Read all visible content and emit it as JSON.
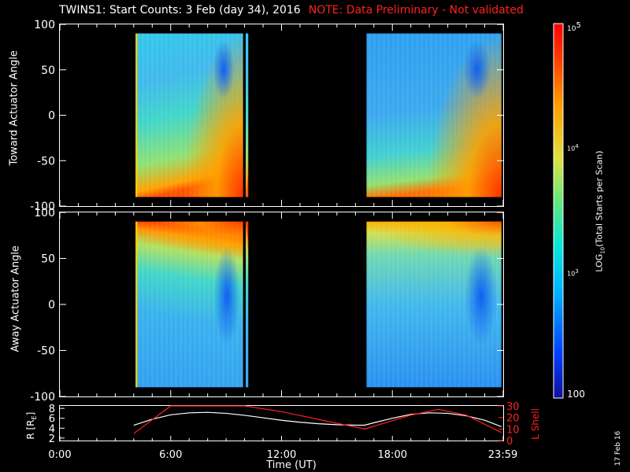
{
  "title": "TWINS1: Start Counts:  3 Feb (day  34), 2016",
  "note": "NOTE: Data Preliminary - Not validated",
  "colors": {
    "note": "#ff2020",
    "lshell": "#ff2020",
    "r_trace": "#ffffff",
    "background": "#000000",
    "nodata": "#000000"
  },
  "colorbar": {
    "label": "LOG10(Total Starts per Scan)",
    "ticks": [
      "10^5",
      "10^4",
      "10^3",
      "100"
    ],
    "range": [
      100,
      100000
    ],
    "scale": "log"
  },
  "date_stamp": "17 Feb 16",
  "chart_data": [
    {
      "type": "heatmap",
      "panel": "toward",
      "ylabel": "Toward Actuator Angle",
      "ylim": [
        -100,
        100
      ],
      "y_ticks": [
        "100",
        "50",
        "0",
        "-50",
        "-100"
      ],
      "data_y_range": [
        -90,
        90
      ],
      "data_intervals_hours": [
        [
          4.1,
          9.92
        ],
        [
          10.06,
          10.2
        ],
        [
          16.6,
          23.9
        ]
      ],
      "bright_edge_hours": [
        4.1,
        9.92
      ]
    },
    {
      "type": "heatmap",
      "panel": "away",
      "ylabel": "Away Actuator Angle",
      "ylim": [
        -100,
        100
      ],
      "y_ticks": [
        "100",
        "50",
        "0",
        "-50",
        "-100"
      ],
      "data_y_range": [
        -90,
        90
      ],
      "data_intervals_hours": [
        [
          4.1,
          9.92
        ],
        [
          10.06,
          10.2
        ],
        [
          16.6,
          23.9
        ]
      ],
      "bright_edge_hours": [
        4.1,
        9.92
      ]
    },
    {
      "type": "line",
      "panel": "orbit",
      "ylabel": "R [RE]",
      "y2label": "L Shell",
      "ylim": [
        1.5,
        8.5
      ],
      "y_ticks": [
        "8",
        "6",
        "4",
        "2"
      ],
      "y2lim": [
        0,
        30
      ],
      "y2_ticks": [
        "30",
        "20",
        "10",
        "0"
      ],
      "x_ticks": [
        "0:00",
        "6:00",
        "12:00",
        "18:00",
        "23:59"
      ],
      "xlabel": "Time (UT)",
      "series": [
        {
          "name": "R",
          "axis": "left",
          "x": [
            4.0,
            5.0,
            6.0,
            7.0,
            8.0,
            9.0,
            10.0,
            11.0,
            12.0,
            13.0,
            14.0,
            15.0,
            16.0,
            16.5,
            17.0,
            18.0,
            19.0,
            20.0,
            21.0,
            22.0,
            23.0,
            23.9
          ],
          "y": [
            4.6,
            5.8,
            6.7,
            7.1,
            7.2,
            7.0,
            6.6,
            6.1,
            5.6,
            5.2,
            4.9,
            4.7,
            4.6,
            4.6,
            5.1,
            6.0,
            6.8,
            7.1,
            7.0,
            6.5,
            5.6,
            4.3
          ]
        },
        {
          "name": "L Shell",
          "axis": "right",
          "x": [
            4.0,
            6.0,
            6.01,
            10.0,
            12.0,
            16.5,
            19.0,
            20.5,
            22.0,
            23.9
          ],
          "y": [
            6.0,
            30.0,
            30.0,
            30.0,
            25.0,
            10.0,
            22.0,
            27.0,
            22.0,
            7.0
          ]
        }
      ]
    }
  ]
}
